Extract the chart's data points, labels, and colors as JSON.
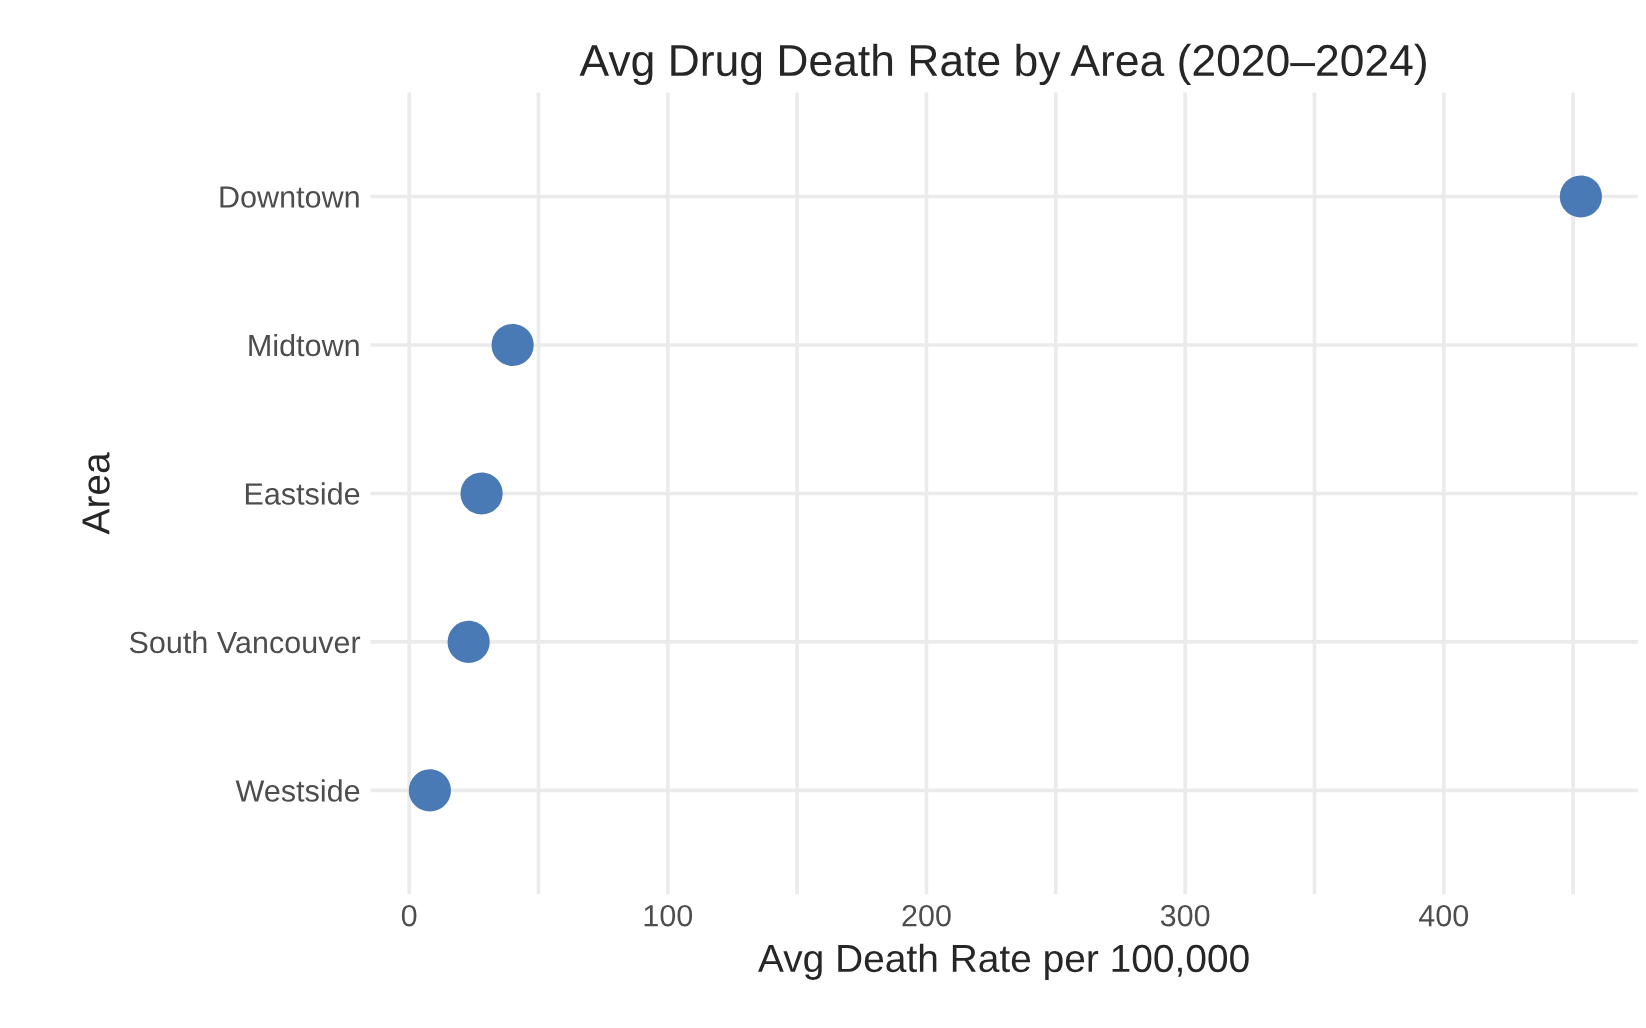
{
  "chart_data": {
    "type": "scatter",
    "title": "Avg Drug Death Rate by Area (2020–2024)",
    "xlabel": "Avg Death Rate per 100,000",
    "ylabel": "Area",
    "orientation": "horizontal",
    "categories": [
      "Downtown",
      "Midtown",
      "Eastside",
      "South Vancouver",
      "Westside"
    ],
    "series": [
      {
        "color": "#4a7ab5",
        "values": [
          453,
          40,
          28,
          23,
          8
        ]
      }
    ],
    "xlim": [
      -15,
      475
    ],
    "xticks": [
      0,
      {
        "value": 50,
        "label": null
      },
      100,
      {
        "value": 150,
        "label": null
      },
      200,
      {
        "value": 250,
        "label": null
      },
      300,
      {
        "value": 350,
        "label": null
      },
      400,
      {
        "value": 450,
        "label": null
      }
    ],
    "grid": true,
    "marker": "circle",
    "legend": false
  }
}
